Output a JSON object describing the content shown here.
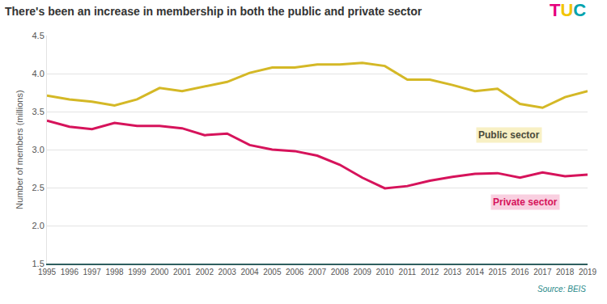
{
  "chart_data": {
    "type": "line",
    "title": "There's been an increase in membership in both the public and private sector",
    "logo": "TUC",
    "source": "Source: BEIS",
    "y_label": "Number of members (millions)",
    "x": [
      1995,
      1996,
      1997,
      1998,
      1999,
      2000,
      2001,
      2002,
      2003,
      2004,
      2005,
      2006,
      2007,
      2008,
      2009,
      2010,
      2011,
      2012,
      2013,
      2014,
      2015,
      2016,
      2017,
      2018,
      2019
    ],
    "series": [
      {
        "name": "Public sector",
        "color": "#d4b826",
        "values": [
          3.71,
          3.66,
          3.63,
          3.58,
          3.66,
          3.81,
          3.77,
          3.83,
          3.89,
          4.01,
          4.08,
          4.08,
          4.12,
          4.12,
          4.14,
          4.1,
          3.92,
          3.92,
          3.85,
          3.77,
          3.8,
          3.6,
          3.55,
          3.69,
          3.77
        ]
      },
      {
        "name": "Private sector",
        "color": "#d6135b",
        "values": [
          3.38,
          3.3,
          3.27,
          3.35,
          3.31,
          3.31,
          3.28,
          3.19,
          3.21,
          3.06,
          3.0,
          2.98,
          2.92,
          2.8,
          2.63,
          2.49,
          2.52,
          2.59,
          2.64,
          2.68,
          2.69,
          2.63,
          2.7,
          2.65,
          2.67
        ]
      }
    ],
    "xlim": [
      1995,
      2019
    ],
    "xticks": [
      1995,
      1996,
      1997,
      1998,
      1999,
      2000,
      2001,
      2002,
      2003,
      2004,
      2005,
      2006,
      2007,
      2008,
      2009,
      2010,
      2011,
      2012,
      2013,
      2014,
      2015,
      2016,
      2017,
      2018,
      2019
    ],
    "ylim": [
      1.5,
      4.5
    ],
    "yticks": [
      1.5,
      {
        "value": 2,
        "label": "2.0"
      },
      2.5,
      {
        "value": 3,
        "label": "3.0"
      },
      3.5,
      {
        "value": 4,
        "label": "4.0"
      },
      4.5
    ],
    "grid": true
  }
}
